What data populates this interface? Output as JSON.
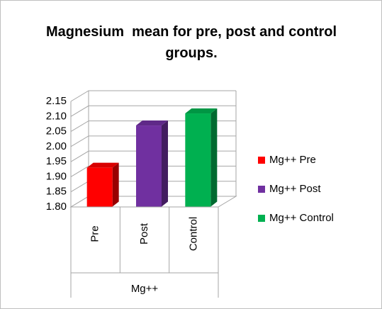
{
  "chart_data": {
    "type": "bar3d",
    "title": "Magnesium  mean for pre, post and control groups.",
    "categories": [
      "Pre",
      "Post",
      "Control"
    ],
    "group_label": "Mg++",
    "series": [
      {
        "name": "Mg++ Pre",
        "color": "#ff0000",
        "values": [
          1.93,
          null,
          null
        ]
      },
      {
        "name": "Mg++ Post",
        "color": "#7030a0",
        "values": [
          null,
          2.07,
          null
        ]
      },
      {
        "name": "Mg++ Control",
        "color": "#00b050",
        "values": [
          null,
          null,
          2.11
        ]
      }
    ],
    "ylim": [
      1.8,
      2.15
    ],
    "yticks": [
      {
        "value": 1.8,
        "label": "1.80"
      },
      1.85,
      {
        "value": 1.9,
        "label": "1.90"
      },
      1.95,
      {
        "value": 2.0,
        "label": "2.00"
      },
      2.05,
      {
        "value": 2.1,
        "label": "2.10"
      },
      2.15
    ],
    "grid": true,
    "legend": "right"
  }
}
